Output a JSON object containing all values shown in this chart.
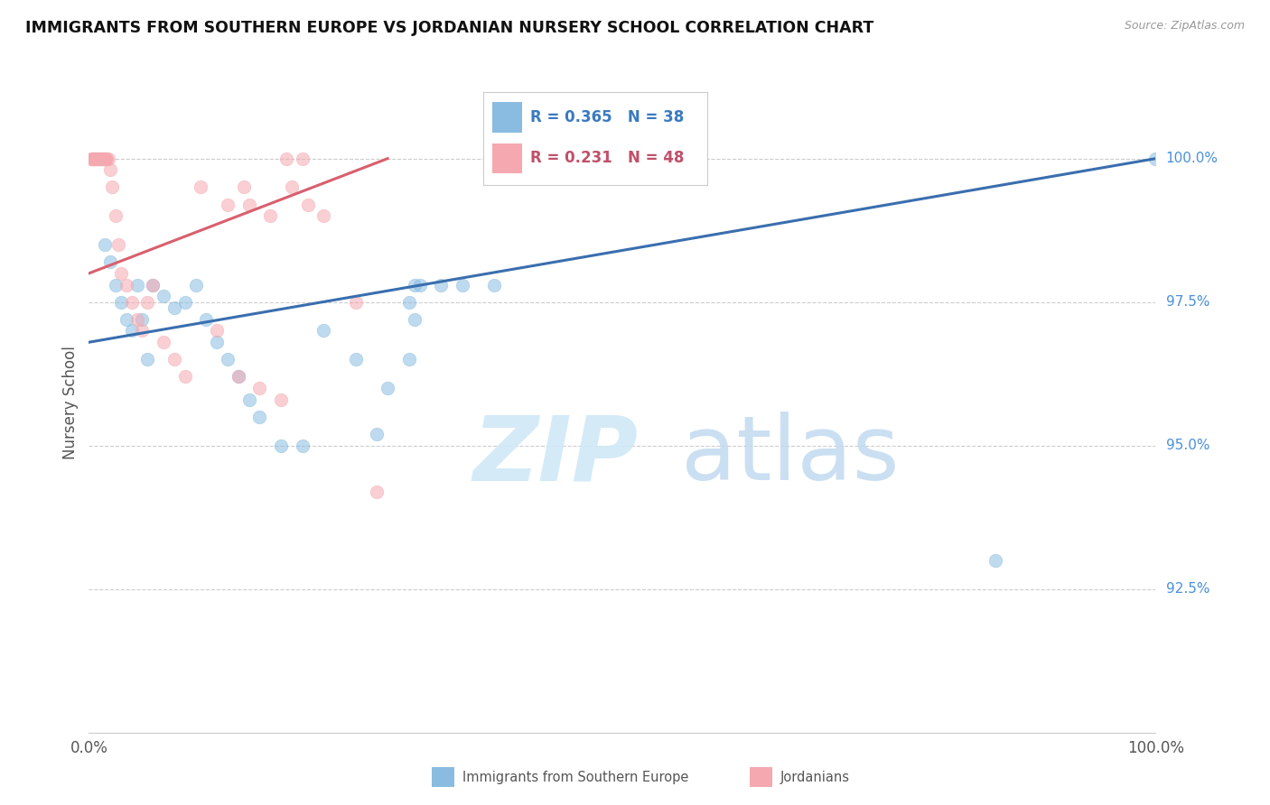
{
  "title": "IMMIGRANTS FROM SOUTHERN EUROPE VS JORDANIAN NURSERY SCHOOL CORRELATION CHART",
  "source": "Source: ZipAtlas.com",
  "ylabel": "Nursery School",
  "xlim": [
    0.0,
    100.0
  ],
  "ylim": [
    90.0,
    101.5
  ],
  "yticks": [
    92.5,
    95.0,
    97.5,
    100.0
  ],
  "ytick_labels": [
    "92.5%",
    "95.0%",
    "97.5%",
    "100.0%"
  ],
  "xtick_labels": [
    "0.0%",
    "100.0%"
  ],
  "legend_r_blue": "R = 0.365",
  "legend_n_blue": "N = 38",
  "legend_r_pink": "R = 0.231",
  "legend_n_pink": "N = 48",
  "blue_color": "#89BCE0",
  "pink_color": "#F5A8B0",
  "blue_line_color": "#3A6EAF",
  "pink_line_color": "#D95F6E",
  "blue_scatter_x": [
    0.5,
    1.0,
    1.5,
    2.0,
    2.5,
    3.0,
    3.5,
    4.0,
    4.5,
    5.0,
    5.5,
    6.0,
    7.0,
    8.0,
    9.0,
    10.0,
    11.0,
    12.0,
    13.0,
    14.0,
    15.0,
    16.0,
    18.0,
    20.0,
    22.0,
    25.0,
    27.0,
    28.0,
    30.0,
    30.5,
    31.0,
    33.0,
    35.0,
    38.0,
    85.0,
    100.0,
    30.0,
    30.5
  ],
  "blue_scatter_y": [
    100.0,
    100.0,
    98.5,
    98.2,
    97.8,
    97.5,
    97.2,
    97.0,
    97.8,
    97.2,
    96.5,
    97.8,
    97.6,
    97.4,
    97.5,
    97.8,
    97.2,
    96.8,
    96.5,
    96.2,
    95.8,
    95.5,
    95.0,
    95.0,
    97.0,
    96.5,
    95.2,
    96.0,
    96.5,
    97.8,
    97.8,
    97.8,
    97.8,
    97.8,
    93.0,
    100.0,
    97.5,
    97.2
  ],
  "pink_scatter_x": [
    0.2,
    0.3,
    0.4,
    0.5,
    0.6,
    0.7,
    0.8,
    0.9,
    1.0,
    1.1,
    1.2,
    1.3,
    1.4,
    1.5,
    1.5,
    1.6,
    1.7,
    1.8,
    2.0,
    2.2,
    2.5,
    2.8,
    3.0,
    3.5,
    4.0,
    4.5,
    5.0,
    5.5,
    6.0,
    7.0,
    8.0,
    9.0,
    10.5,
    12.0,
    14.0,
    16.0,
    18.0,
    13.0,
    14.5,
    15.0,
    17.0,
    18.5,
    20.0,
    19.0,
    20.5,
    22.0,
    25.0,
    27.0
  ],
  "pink_scatter_y": [
    100.0,
    100.0,
    100.0,
    100.0,
    100.0,
    100.0,
    100.0,
    100.0,
    100.0,
    100.0,
    100.0,
    100.0,
    100.0,
    100.0,
    100.0,
    100.0,
    100.0,
    100.0,
    99.8,
    99.5,
    99.0,
    98.5,
    98.0,
    97.8,
    97.5,
    97.2,
    97.0,
    97.5,
    97.8,
    96.8,
    96.5,
    96.2,
    99.5,
    97.0,
    96.2,
    96.0,
    95.8,
    99.2,
    99.5,
    99.2,
    99.0,
    100.0,
    100.0,
    99.5,
    99.2,
    99.0,
    97.5,
    94.2
  ],
  "blue_trendline_x": [
    0.0,
    100.0
  ],
  "blue_trendline_y": [
    96.8,
    100.0
  ],
  "pink_trendline_x": [
    0.0,
    28.0
  ],
  "pink_trendline_y": [
    98.0,
    100.0
  ]
}
